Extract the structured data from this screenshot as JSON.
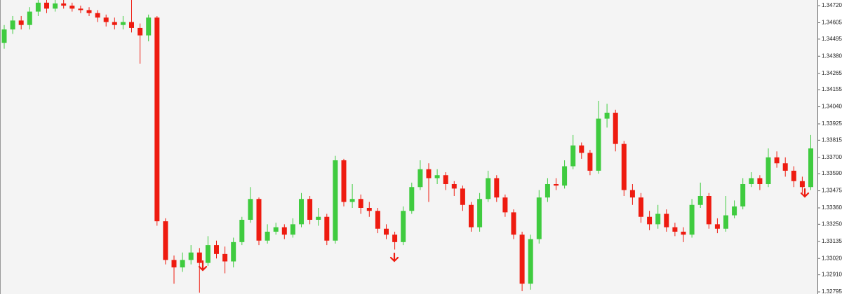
{
  "chart_data": {
    "type": "candlestick",
    "up_color": "#3fcb3f",
    "down_color": "#ee1b10",
    "ylim": [
      1.32781,
      1.34758
    ],
    "yticks": [
      {
        "value": 1.3472,
        "label": "1.34720"
      },
      {
        "value": 1.34605,
        "label": "1.34605"
      },
      {
        "value": 1.34495,
        "label": "1.34495"
      },
      {
        "value": 1.3438,
        "label": "1.34380"
      },
      {
        "value": 1.34265,
        "label": "1.34265"
      },
      {
        "value": 1.34155,
        "label": "1.34155"
      },
      {
        "value": 1.3404,
        "label": "1.34040"
      },
      {
        "value": 1.33925,
        "label": "1.33925"
      },
      {
        "value": 1.33815,
        "label": "1.33815"
      },
      {
        "value": 1.337,
        "label": "1.33700"
      },
      {
        "value": 1.3359,
        "label": "1.33590"
      },
      {
        "value": 1.33475,
        "label": "1.33475"
      },
      {
        "value": 1.3336,
        "label": "1.33360"
      },
      {
        "value": 1.3325,
        "label": "1.33250"
      },
      {
        "value": 1.33135,
        "label": "1.33135"
      },
      {
        "value": 1.3302,
        "label": "1.33020"
      },
      {
        "value": 1.3291,
        "label": "1.32910"
      },
      {
        "value": 1.32795,
        "label": "1.32795"
      }
    ],
    "open": [
      1.3447,
      1.3456,
      1.3462,
      1.3459,
      1.3468,
      1.3474,
      1.347,
      1.34735,
      1.3472,
      1.347,
      1.3469,
      1.3467,
      1.3464,
      1.3461,
      1.3459,
      1.3461,
      1.3457,
      1.3452,
      1.3464,
      1.3327,
      1.3301,
      1.3296,
      1.3301,
      1.3306,
      1.3299,
      1.3311,
      1.3305,
      1.33,
      1.3313,
      1.3328,
      1.3342,
      1.3314,
      1.332,
      1.3323,
      1.3318,
      1.3325,
      1.3342,
      1.3328,
      1.333,
      1.3314,
      1.3368,
      1.334,
      1.3342,
      1.3336,
      1.3334,
      1.3322,
      1.3318,
      1.3313,
      1.3334,
      1.335,
      1.3362,
      1.3356,
      1.3358,
      1.3352,
      1.3349,
      1.3338,
      1.3323,
      1.3342,
      1.3356,
      1.3343,
      1.3333,
      1.3318,
      1.3285,
      1.3315,
      1.3343,
      1.3352,
      1.3351,
      1.3364,
      1.3378,
      1.3373,
      1.3361,
      1.3396,
      1.34,
      1.3379,
      1.3348,
      1.3343,
      1.333,
      1.3325,
      1.3332,
      1.3323,
      1.332,
      1.3318,
      1.3338,
      1.3344,
      1.3325,
      1.3322,
      1.3331,
      1.3337,
      1.3352,
      1.3356,
      1.3352,
      1.337,
      1.3366,
      1.3361,
      1.3354,
      1.335
    ],
    "high": [
      1.3459,
      1.3465,
      1.3465,
      1.3471,
      1.3476,
      1.3476,
      1.3476,
      1.3476,
      1.3474,
      1.3472,
      1.3471,
      1.3469,
      1.3466,
      1.3464,
      1.3465,
      1.34758,
      1.346,
      1.3466,
      1.3465,
      1.3329,
      1.3304,
      1.3306,
      1.3311,
      1.3309,
      1.3317,
      1.3314,
      1.331,
      1.3316,
      1.333,
      1.335,
      1.3343,
      1.3325,
      1.3326,
      1.3325,
      1.3329,
      1.3346,
      1.3344,
      1.3336,
      1.3332,
      1.3371,
      1.3369,
      1.3352,
      1.3345,
      1.334,
      1.3336,
      1.3325,
      1.332,
      1.3337,
      1.3353,
      1.3368,
      1.3366,
      1.3362,
      1.336,
      1.3354,
      1.3351,
      1.334,
      1.3346,
      1.3361,
      1.3358,
      1.3345,
      1.3335,
      1.332,
      1.3318,
      1.3348,
      1.3356,
      1.3356,
      1.3368,
      1.3385,
      1.338,
      1.3375,
      1.3408,
      1.3406,
      1.3402,
      1.3381,
      1.3352,
      1.3346,
      1.3334,
      1.3338,
      1.3335,
      1.3326,
      1.3323,
      1.3342,
      1.3353,
      1.3346,
      1.3329,
      1.3344,
      1.3341,
      1.3356,
      1.336,
      1.3358,
      1.3376,
      1.3374,
      1.337,
      1.3364,
      1.3357,
      1.3385
    ],
    "low": [
      1.3443,
      1.3453,
      1.3456,
      1.3456,
      1.3465,
      1.3467,
      1.3468,
      1.347,
      1.3468,
      1.3467,
      1.3465,
      1.3461,
      1.3458,
      1.3456,
      1.3456,
      1.3454,
      1.3433,
      1.3448,
      1.3324,
      1.3298,
      1.3285,
      1.3293,
      1.3298,
      1.3279,
      1.3297,
      1.3302,
      1.3292,
      1.3296,
      1.3311,
      1.3326,
      1.3311,
      1.3312,
      1.3318,
      1.3315,
      1.3316,
      1.3323,
      1.3325,
      1.3324,
      1.3311,
      1.3312,
      1.3337,
      1.3336,
      1.3332,
      1.333,
      1.3319,
      1.3315,
      1.3308,
      1.3311,
      1.3332,
      1.3348,
      1.334,
      1.3352,
      1.3348,
      1.3344,
      1.3334,
      1.332,
      1.332,
      1.334,
      1.334,
      1.333,
      1.3315,
      1.328,
      1.3281,
      1.3312,
      1.334,
      1.3348,
      1.3349,
      1.3362,
      1.3369,
      1.3358,
      1.3359,
      1.339,
      1.3374,
      1.3344,
      1.3338,
      1.3326,
      1.3321,
      1.3322,
      1.332,
      1.3317,
      1.3313,
      1.3316,
      1.3336,
      1.3322,
      1.3319,
      1.332,
      1.3329,
      1.3335,
      1.335,
      1.3348,
      1.335,
      1.3363,
      1.3357,
      1.335,
      1.3346,
      1.3348
    ],
    "close": [
      1.3456,
      1.3462,
      1.3459,
      1.3468,
      1.3474,
      1.347,
      1.34735,
      1.3472,
      1.347,
      1.3469,
      1.3467,
      1.3464,
      1.3461,
      1.3459,
      1.3461,
      1.3457,
      1.3452,
      1.3464,
      1.3327,
      1.3301,
      1.3296,
      1.3301,
      1.3306,
      1.3299,
      1.3311,
      1.3305,
      1.33,
      1.3313,
      1.3328,
      1.3342,
      1.3314,
      1.332,
      1.3323,
      1.3318,
      1.3325,
      1.3342,
      1.3328,
      1.333,
      1.3314,
      1.3368,
      1.334,
      1.3342,
      1.3336,
      1.3334,
      1.3322,
      1.3318,
      1.3313,
      1.3334,
      1.335,
      1.3362,
      1.3356,
      1.3358,
      1.3352,
      1.3349,
      1.3338,
      1.3323,
      1.3342,
      1.3356,
      1.3343,
      1.3333,
      1.3318,
      1.3285,
      1.3315,
      1.3343,
      1.3352,
      1.3351,
      1.3364,
      1.3378,
      1.3373,
      1.3361,
      1.3396,
      1.34,
      1.3379,
      1.3348,
      1.3343,
      1.333,
      1.3325,
      1.3332,
      1.3323,
      1.332,
      1.3318,
      1.3338,
      1.3344,
      1.3325,
      1.3322,
      1.3331,
      1.3337,
      1.3352,
      1.3356,
      1.3352,
      1.337,
      1.3366,
      1.3361,
      1.3354,
      1.335,
      1.3376
    ]
  }
}
